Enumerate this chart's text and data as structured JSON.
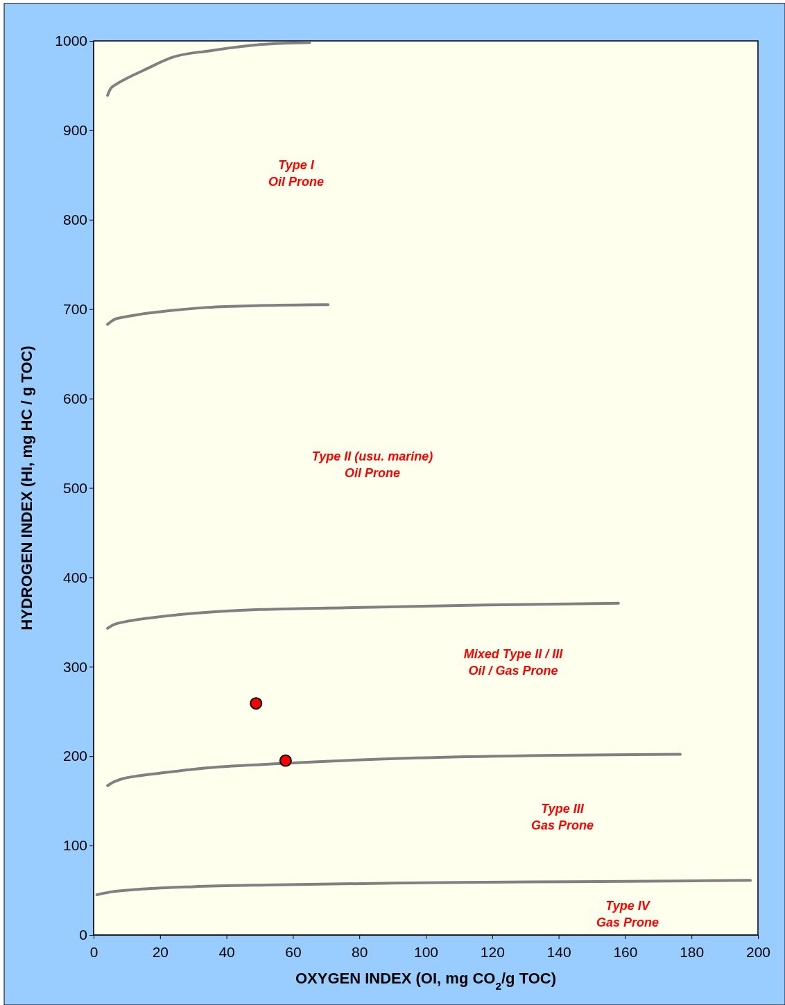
{
  "chart_data": {
    "type": "scatter",
    "xlabel": "OXYGEN INDEX (OI, mg CO$_{2}$/g TOC)",
    "ylabel": "HYDROGEN INDEX (HI, mg HC / g TOC)",
    "xlim": [
      0,
      200
    ],
    "ylim": [
      0,
      1000
    ],
    "xticks": [
      0,
      20,
      40,
      60,
      80,
      100,
      120,
      140,
      160,
      180,
      200
    ],
    "yticks": [
      0,
      100,
      200,
      300,
      400,
      500,
      600,
      700,
      800,
      900,
      1000
    ],
    "grid": false,
    "series": [
      {
        "type": "line",
        "color": "#808080",
        "x": [
          4.2,
          5,
          7,
          9.4,
          15,
          24,
          35,
          45,
          55,
          65
        ],
        "values": [
          939,
          946,
          952,
          957,
          967,
          982,
          989,
          994,
          997,
          998
        ]
      },
      {
        "type": "line",
        "color": "#808080",
        "x": [
          4.2,
          6,
          9,
          13.6,
          20,
          34.4,
          50,
          70.6
        ],
        "values": [
          683,
          688,
          691,
          694,
          697,
          702,
          704,
          705
        ]
      },
      {
        "type": "line",
        "color": "#808080",
        "x": [
          4.2,
          6,
          9,
          13.6,
          20,
          34.4,
          50,
          76,
          118,
          158
        ],
        "values": [
          343,
          347,
          350,
          353,
          356,
          361,
          364,
          366,
          369,
          371
        ]
      },
      {
        "type": "line",
        "color": "#808080",
        "x": [
          4.2,
          6,
          9,
          13.6,
          20,
          34.4,
          57.8,
          97,
          139,
          176.6
        ],
        "values": [
          167,
          171,
          175,
          178,
          181,
          187,
          192,
          198,
          201,
          202
        ]
      },
      {
        "type": "line",
        "color": "#808080",
        "x": [
          1,
          5,
          13.6,
          30,
          55,
          90,
          118,
          160,
          197.7
        ],
        "values": [
          45,
          48,
          51,
          54,
          56,
          58,
          59,
          60,
          61
        ]
      },
      {
        "color": "#ff0000",
        "marker": "circle",
        "x": [
          48.9,
          57.8
        ],
        "values": [
          259,
          195
        ]
      }
    ],
    "annotations": [
      "Type I\nOil Prone",
      "Type II (usu. marine)\nOil Prone",
      "Mixed Type II / III\nOil / Gas Prone",
      "Type III\nGas Prone",
      "Type IV\nGas Prone"
    ]
  }
}
